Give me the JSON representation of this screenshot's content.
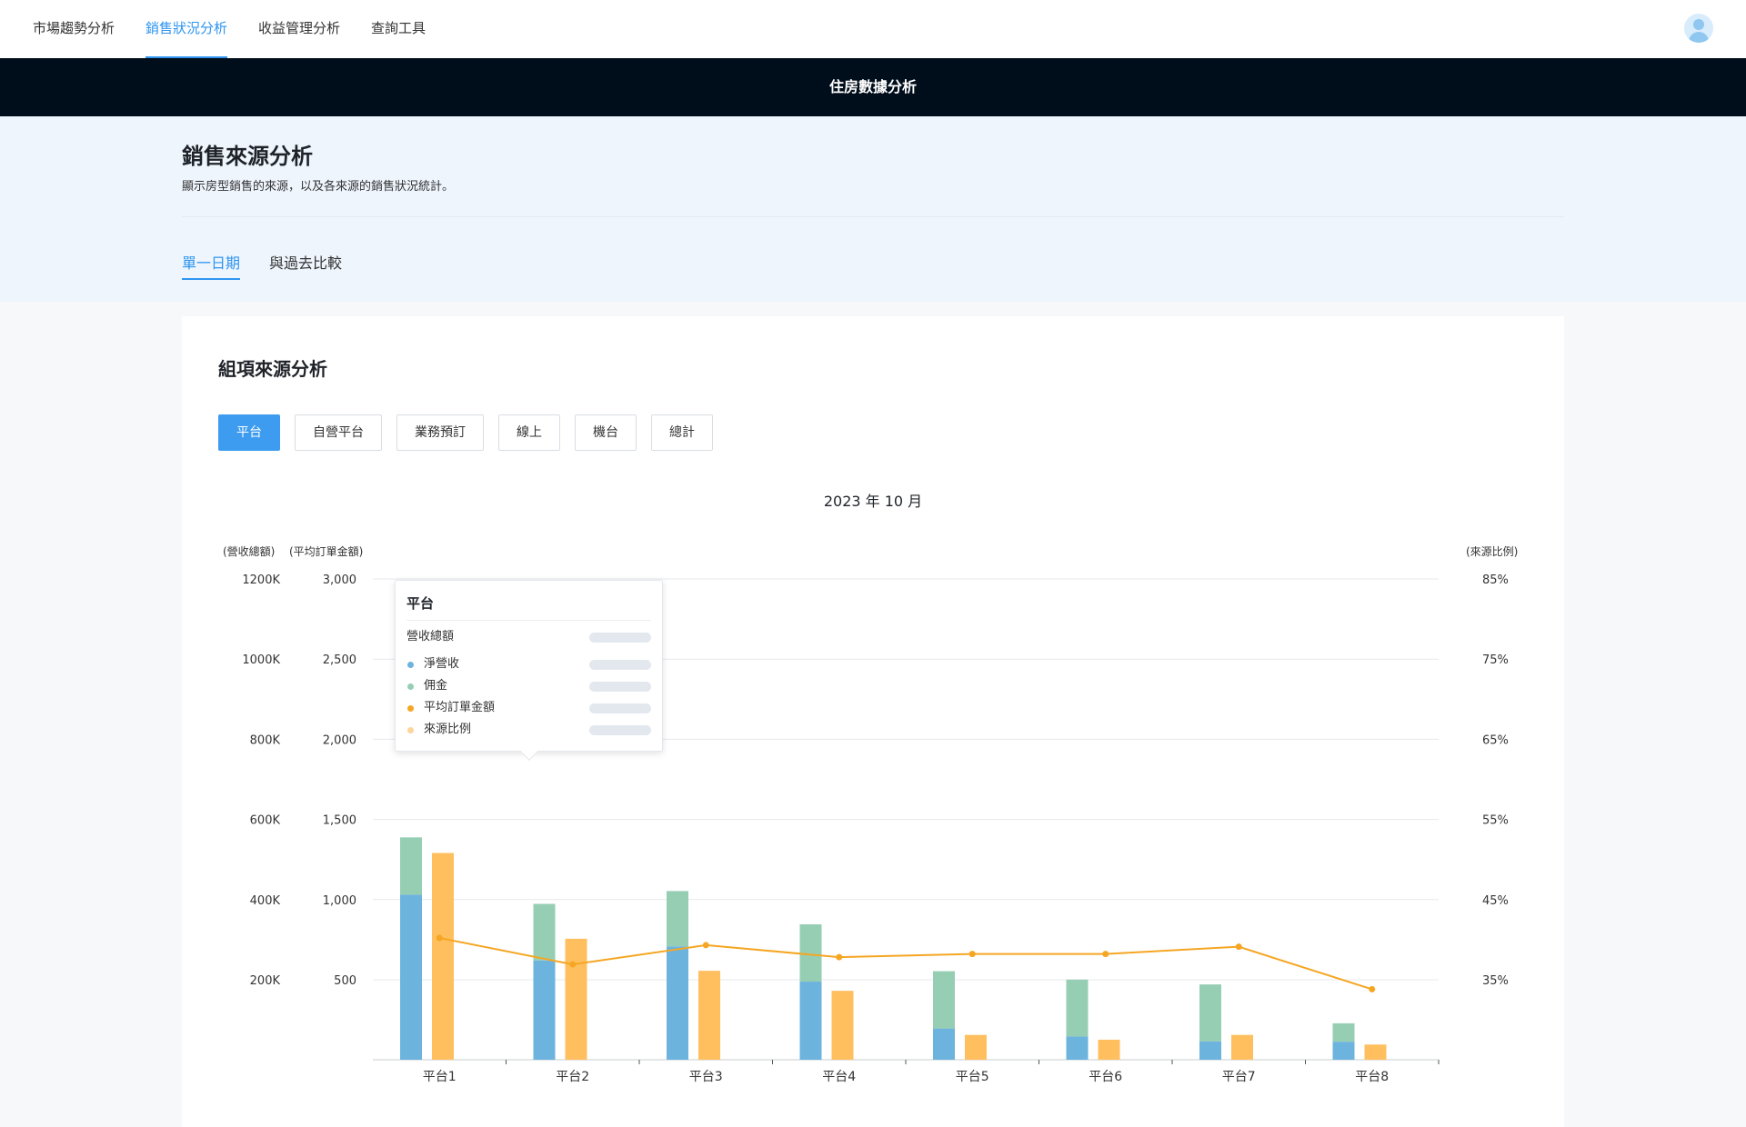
{
  "nav": {
    "tabs": [
      {
        "label": "市場趨勢分析"
      },
      {
        "label": "銷售狀況分析"
      },
      {
        "label": "收益管理分析"
      },
      {
        "label": "查詢工具"
      }
    ],
    "active_tab": "銷售狀況分析"
  },
  "banner": {
    "title": "住房數據分析"
  },
  "page": {
    "title": "銷售來源分析",
    "description": "顯示房型銷售的來源，以及各來源的銷售狀況統計。",
    "subtabs": [
      {
        "label": "單一日期"
      },
      {
        "label": "與過去比較"
      }
    ],
    "active_subtab": "單一日期"
  },
  "card": {
    "title": "組項來源分析",
    "filters": [
      {
        "label": "平台"
      },
      {
        "label": "自營平台"
      },
      {
        "label": "業務預訂"
      },
      {
        "label": "線上"
      },
      {
        "label": "機台"
      },
      {
        "label": "總計"
      }
    ],
    "active_filter": "平台"
  },
  "chart_data": {
    "type": "bar",
    "title": "2023 年 10 月",
    "axis_titles": {
      "revenue": "(營收總額)",
      "avg_order": "(平均訂單金額)",
      "ratio": "(來源比例)"
    },
    "left_axis_ticks": [
      "1200K",
      "1000K",
      "800K",
      "600K",
      "400K",
      "200K"
    ],
    "mid_axis_ticks": [
      "3,000",
      "2,500",
      "2,000",
      "1,500",
      "1,000",
      "500"
    ],
    "right_axis_ticks": [
      "85%",
      "75%",
      "65%",
      "55%",
      "45%",
      "35%"
    ],
    "left_axis_range": [
      0,
      1200000
    ],
    "avg_axis_range": [
      0,
      3000
    ],
    "ratio_axis_range": [
      25,
      85
    ],
    "categories": [
      "平台1",
      "平台2",
      "平台3",
      "平台4",
      "平台5",
      "平台6",
      "平台7",
      "平台8"
    ],
    "series": [
      {
        "name": "淨營收",
        "color": "#6cb3de",
        "values": [
          412000,
          248000,
          283000,
          195000,
          78000,
          58000,
          46000,
          45000
        ]
      },
      {
        "name": "佣金",
        "color": "#96ceb4",
        "values": [
          143000,
          141000,
          138000,
          143000,
          143000,
          142000,
          142000,
          46000
        ]
      },
      {
        "name": "平均訂單金額",
        "color": "#ffbf5e",
        "values": [
          1290,
          755,
          555,
          430,
          155,
          125,
          155,
          95
        ]
      },
      {
        "name": "來源比例",
        "color": "#f5a623",
        "values": [
          40.2,
          36.9,
          39.3,
          37.8,
          38.2,
          38.2,
          39.1,
          33.8
        ]
      }
    ],
    "grid": true
  },
  "tooltip": {
    "title": "平台",
    "total_label": "營收總額",
    "rows": [
      {
        "label": "淨營收",
        "color": "#6cb3de"
      },
      {
        "label": "佣金",
        "color": "#96ceb4"
      },
      {
        "label": "平均訂單金額",
        "color": "#f5a623"
      },
      {
        "label": "來源比例",
        "color": "#fcd59a"
      }
    ]
  }
}
